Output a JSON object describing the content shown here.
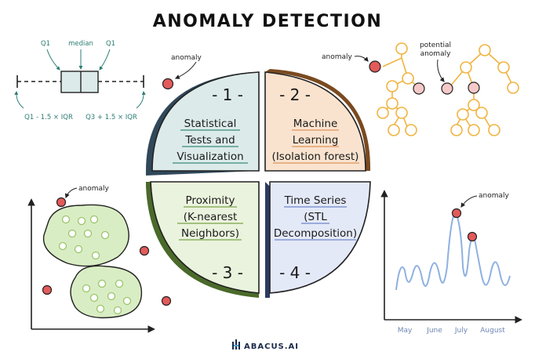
{
  "title": "ANOMALY DETECTION",
  "boxplot": {
    "q1_left": "Q1",
    "median": "median",
    "q1_right": "Q1",
    "lower_fence": "Q1 - 1.5 × IQR",
    "upper_fence": "Q3 + 1.5 × IQR"
  },
  "center_anomaly": "anomaly",
  "tree": {
    "anomaly": "anomaly",
    "potential_line1": "potential",
    "potential_line2": "anomaly"
  },
  "scatter": {
    "anomaly": "anomaly"
  },
  "timeseries": {
    "anomaly": "anomaly",
    "months": [
      "May",
      "June",
      "July",
      "August"
    ]
  },
  "quadrants": [
    {
      "number": "- 1 -",
      "lines": [
        "Statistical",
        "Tests and",
        "Visualization"
      ]
    },
    {
      "number": "- 2 -",
      "lines": [
        "Machine",
        "Learning",
        "(Isolation forest)"
      ]
    },
    {
      "number": "- 3 -",
      "lines": [
        "Proximity",
        "(K-nearest",
        "Neighbors)"
      ]
    },
    {
      "number": "- 4 -",
      "lines": [
        "Time Series",
        "(STL",
        "Decomposition)"
      ]
    }
  ],
  "brand": "ABACUS.AI",
  "colors": {
    "q1": "#dcebea",
    "q2": "#f9e3cf",
    "q3": "#eaf3dd",
    "q4": "#e4e9f8",
    "anomaly": "#e35a5a",
    "tree": "#f0b440",
    "cluster": "#d9edc4",
    "series": "#8fb0e0"
  }
}
